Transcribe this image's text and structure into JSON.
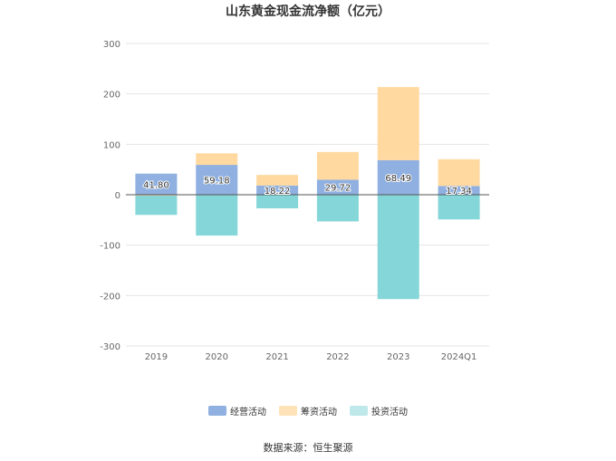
{
  "title": "山东黄金现金流净额（亿元）",
  "source": "数据来源：恒生聚源",
  "colors": {
    "operating": "#8fb0e0",
    "financing": "#ffd9a0",
    "investing": "#85d6d8",
    "grid": "#e6e6e6",
    "zero_line": "#555555",
    "tick_text": "#666666",
    "label_text": "#333333"
  },
  "chart_data": {
    "type": "bar",
    "stacked": true,
    "categories": [
      "2019",
      "2020",
      "2021",
      "2022",
      "2023",
      "2024Q1"
    ],
    "ylim": [
      -300,
      300
    ],
    "yticks": [
      300,
      200,
      100,
      0,
      -100,
      -200,
      -300
    ],
    "grid": true,
    "legend_position": "bottom",
    "series": [
      {
        "name": "经营活动",
        "key": "operating",
        "values": [
          41.8,
          59.18,
          18.22,
          29.72,
          68.49,
          17.34
        ],
        "labels": [
          "41.80",
          "59.18",
          "18.22",
          "29.72",
          "68.49",
          "17.34"
        ]
      },
      {
        "name": "筹资活动",
        "key": "financing",
        "values": [
          -2,
          23,
          21,
          55,
          145,
          53
        ]
      },
      {
        "name": "投资活动",
        "key": "investing",
        "values": [
          -38,
          -81,
          -27,
          -53,
          -207,
          -49
        ]
      }
    ]
  }
}
